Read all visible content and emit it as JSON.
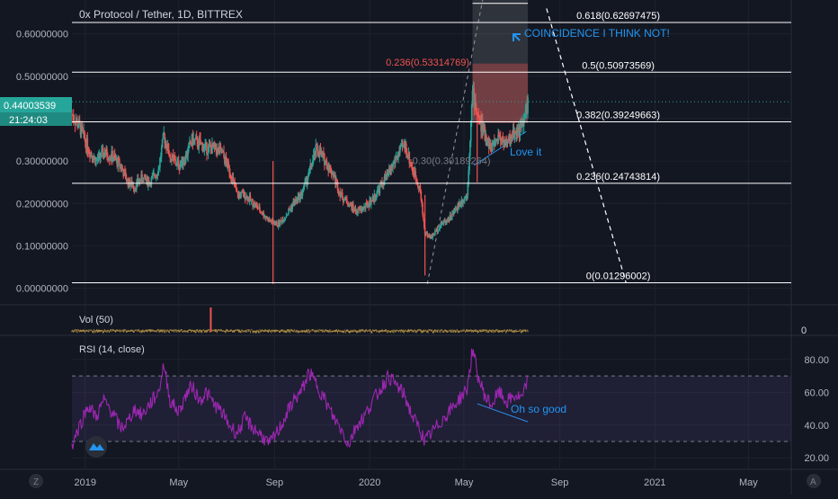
{
  "header": {
    "title": "0x Protocol / Tether, 1D, BITTREX"
  },
  "price_badge": {
    "value": "0.44003539",
    "countdown": "21:24:03"
  },
  "volume_pane": {
    "label": "Vol (50)",
    "scale_label": "0"
  },
  "rsi_pane": {
    "label": "RSI (14, close)"
  },
  "annotations": {
    "coincidence": "COINCIDENCE I THINK NOT!",
    "love": "Love it",
    "good": "Oh so good"
  },
  "colors": {
    "background": "#131722",
    "up": "#26a69a",
    "down": "#ef5350",
    "fib_red": "#ef5350",
    "annotation_blue": "#2196f3",
    "rsi_line": "#9c27b0",
    "rsi_band": "#7e57c2",
    "price_badge": "#26a69a"
  },
  "chart_data": [
    {
      "type": "candlestick",
      "title": "0x Protocol / Tether, 1D, BITTREX",
      "y_ticks": [
        "0.60000000",
        "0.50000000",
        "0.40000000",
        "0.30000000",
        "0.20000000",
        "0.10000000",
        "0.00000000"
      ],
      "y_tick_values": [
        0.6,
        0.5,
        0.4,
        0.3,
        0.2,
        0.1,
        0.0
      ],
      "ylim": [
        -0.02,
        0.68
      ],
      "x_ticks": [
        "2019",
        "May",
        "Sep",
        "2020",
        "May",
        "Sep",
        "2021",
        "May"
      ],
      "x_tick_dates": [
        "2019-01-01",
        "2019-05-01",
        "2019-09-01",
        "2020-01-01",
        "2020-05-01",
        "2020-09-01",
        "2021-01-01",
        "2021-05-01"
      ],
      "xlim": [
        "2018-12-15",
        "2021-06-25"
      ],
      "last_price": 0.44003539,
      "series": [
        {
          "points": [
            [
              "2018-12-15",
              0.41
            ],
            [
              "2018-12-25",
              0.38
            ],
            [
              "2019-01-05",
              0.33
            ],
            [
              "2019-01-15",
              0.3
            ],
            [
              "2019-01-25",
              0.32
            ],
            [
              "2019-02-05",
              0.31
            ],
            [
              "2019-02-15",
              0.29
            ],
            [
              "2019-02-25",
              0.25
            ],
            [
              "2019-03-05",
              0.24
            ],
            [
              "2019-03-15",
              0.26
            ],
            [
              "2019-03-25",
              0.25
            ],
            [
              "2019-04-05",
              0.28
            ],
            [
              "2019-04-12",
              0.36
            ],
            [
              "2019-04-20",
              0.31
            ],
            [
              "2019-05-01",
              0.29
            ],
            [
              "2019-05-10",
              0.31
            ],
            [
              "2019-05-18",
              0.35
            ],
            [
              "2019-05-28",
              0.34
            ],
            [
              "2019-06-05",
              0.33
            ],
            [
              "2019-06-15",
              0.33
            ],
            [
              "2019-06-25",
              0.32
            ],
            [
              "2019-07-05",
              0.28
            ],
            [
              "2019-07-15",
              0.22
            ],
            [
              "2019-07-25",
              0.22
            ],
            [
              "2019-08-05",
              0.2
            ],
            [
              "2019-08-15",
              0.18
            ],
            [
              "2019-08-25",
              0.16
            ],
            [
              "2019-09-05",
              0.15
            ],
            [
              "2019-09-15",
              0.17
            ],
            [
              "2019-09-25",
              0.2
            ],
            [
              "2019-10-05",
              0.22
            ],
            [
              "2019-10-15",
              0.27
            ],
            [
              "2019-10-25",
              0.33
            ],
            [
              "2019-11-05",
              0.3
            ],
            [
              "2019-11-15",
              0.27
            ],
            [
              "2019-11-25",
              0.22
            ],
            [
              "2019-12-05",
              0.2
            ],
            [
              "2019-12-15",
              0.18
            ],
            [
              "2019-12-25",
              0.19
            ],
            [
              "2020-01-05",
              0.21
            ],
            [
              "2020-01-15",
              0.24
            ],
            [
              "2020-01-25",
              0.27
            ],
            [
              "2020-02-05",
              0.31
            ],
            [
              "2020-02-15",
              0.34
            ],
            [
              "2020-02-25",
              0.28
            ],
            [
              "2020-03-05",
              0.24
            ],
            [
              "2020-03-12",
              0.13
            ],
            [
              "2020-03-20",
              0.12
            ],
            [
              "2020-04-01",
              0.15
            ],
            [
              "2020-04-15",
              0.17
            ],
            [
              "2020-04-25",
              0.2
            ],
            [
              "2020-05-05",
              0.22
            ],
            [
              "2020-05-12",
              0.46
            ],
            [
              "2020-05-20",
              0.4
            ],
            [
              "2020-05-28",
              0.36
            ],
            [
              "2020-06-05",
              0.33
            ],
            [
              "2020-06-15",
              0.36
            ],
            [
              "2020-06-25",
              0.34
            ],
            [
              "2020-07-05",
              0.37
            ],
            [
              "2020-07-15",
              0.38
            ],
            [
              "2020-07-22",
              0.44
            ]
          ]
        }
      ]
    },
    {
      "type": "line",
      "title": "RSI (14, close)",
      "y_ticks": [
        "80.00",
        "60.00",
        "40.00",
        "20.00"
      ],
      "y_tick_values": [
        80,
        60,
        40,
        20
      ],
      "ylim": [
        13,
        92
      ],
      "band": [
        30,
        70
      ],
      "series": [
        {
          "name": "RSI",
          "points": [
            [
              "2018-12-15",
              28
            ],
            [
              "2018-12-25",
              40
            ],
            [
              "2019-01-05",
              52
            ],
            [
              "2019-01-15",
              45
            ],
            [
              "2019-01-25",
              55
            ],
            [
              "2019-02-05",
              48
            ],
            [
              "2019-02-15",
              38
            ],
            [
              "2019-02-25",
              42
            ],
            [
              "2019-03-05",
              50
            ],
            [
              "2019-03-15",
              46
            ],
            [
              "2019-03-25",
              53
            ],
            [
              "2019-04-05",
              60
            ],
            [
              "2019-04-12",
              77
            ],
            [
              "2019-04-20",
              55
            ],
            [
              "2019-05-01",
              48
            ],
            [
              "2019-05-10",
              58
            ],
            [
              "2019-05-18",
              64
            ],
            [
              "2019-05-28",
              55
            ],
            [
              "2019-06-05",
              60
            ],
            [
              "2019-06-15",
              53
            ],
            [
              "2019-06-25",
              48
            ],
            [
              "2019-07-05",
              40
            ],
            [
              "2019-07-15",
              35
            ],
            [
              "2019-07-25",
              44
            ],
            [
              "2019-08-05",
              38
            ],
            [
              "2019-08-15",
              34
            ],
            [
              "2019-08-25",
              28
            ],
            [
              "2019-09-05",
              36
            ],
            [
              "2019-09-15",
              45
            ],
            [
              "2019-09-25",
              55
            ],
            [
              "2019-10-05",
              60
            ],
            [
              "2019-10-15",
              72
            ],
            [
              "2019-10-25",
              65
            ],
            [
              "2019-11-05",
              55
            ],
            [
              "2019-11-15",
              45
            ],
            [
              "2019-11-25",
              38
            ],
            [
              "2019-12-05",
              28
            ],
            [
              "2019-12-15",
              40
            ],
            [
              "2019-12-25",
              45
            ],
            [
              "2020-01-05",
              55
            ],
            [
              "2020-01-15",
              62
            ],
            [
              "2020-01-25",
              70
            ],
            [
              "2020-02-05",
              64
            ],
            [
              "2020-02-15",
              58
            ],
            [
              "2020-02-25",
              45
            ],
            [
              "2020-03-05",
              38
            ],
            [
              "2020-03-12",
              30
            ],
            [
              "2020-03-20",
              35
            ],
            [
              "2020-04-01",
              42
            ],
            [
              "2020-04-15",
              50
            ],
            [
              "2020-04-25",
              56
            ],
            [
              "2020-05-05",
              62
            ],
            [
              "2020-05-12",
              86
            ],
            [
              "2020-05-20",
              68
            ],
            [
              "2020-05-28",
              58
            ],
            [
              "2020-06-05",
              52
            ],
            [
              "2020-06-15",
              60
            ],
            [
              "2020-06-25",
              54
            ],
            [
              "2020-07-05",
              58
            ],
            [
              "2020-07-15",
              56
            ],
            [
              "2020-07-22",
              68
            ]
          ]
        }
      ]
    }
  ],
  "fib_levels": [
    {
      "label": "0.618(0.62697475)",
      "value": 0.62697475
    },
    {
      "label": "0.5(0.50973569)",
      "value": 0.50973569
    },
    {
      "label": "0.382(0.39249663)",
      "value": 0.39249663
    },
    {
      "label": "0.236(0.24743814)",
      "value": 0.24743814
    },
    {
      "label": "0(0.01296002)",
      "value": 0.01296002
    }
  ],
  "fib_secondary": [
    {
      "label": "0.236(0.53314769)",
      "value": 0.53314769
    },
    {
      "label": "0.30(0.30189264)",
      "value": 0.30189264
    }
  ],
  "time_axis_extra": {
    "left_badge": "Z",
    "right_badge": "A"
  }
}
